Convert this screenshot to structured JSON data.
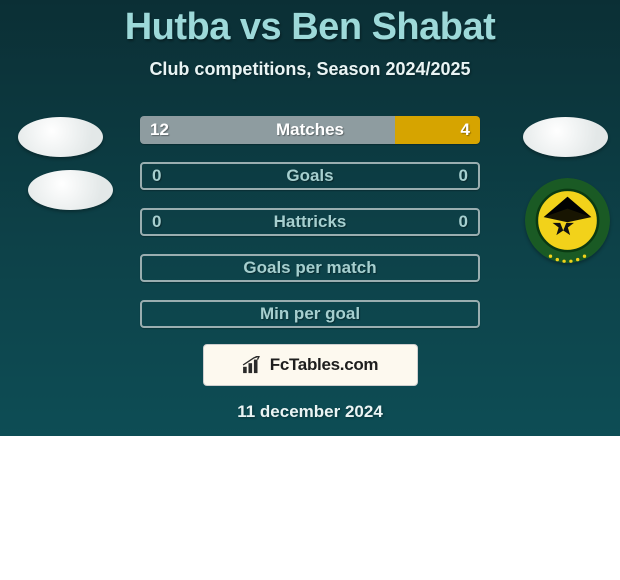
{
  "title": "Hutba vs Ben Shabat",
  "subtitle": "Club competitions, Season 2024/2025",
  "date": "11 december 2024",
  "fctables_label": "FcTables.com",
  "colors": {
    "left": "#8e9ca0",
    "right": "#d6a400",
    "empty_border": "#9aaeb0",
    "empty_text": "#a6cfcf",
    "full_text": "#ffffff"
  },
  "bars": [
    {
      "label": "Matches",
      "left_value": 12,
      "right_value": 4,
      "left_pct": 75,
      "right_pct": 25,
      "has_values": true
    },
    {
      "label": "Goals",
      "left_value": 0,
      "right_value": 0,
      "left_pct": 0,
      "right_pct": 0,
      "has_values": true
    },
    {
      "label": "Hattricks",
      "left_value": 0,
      "right_value": 0,
      "left_pct": 0,
      "right_pct": 0,
      "has_values": true
    },
    {
      "label": "Goals per match",
      "left_value": "",
      "right_value": "",
      "left_pct": 0,
      "right_pct": 0,
      "has_values": false
    },
    {
      "label": "Min per goal",
      "left_value": "",
      "right_value": "",
      "left_pct": 0,
      "right_pct": 0,
      "has_values": false
    }
  ],
  "badge": {
    "outer_ring": "#1a5a24",
    "inner_bg": "#f2d21a",
    "inner_stroke": "#0a3a12",
    "diamond": "#111111",
    "star": "#f2d21a"
  }
}
